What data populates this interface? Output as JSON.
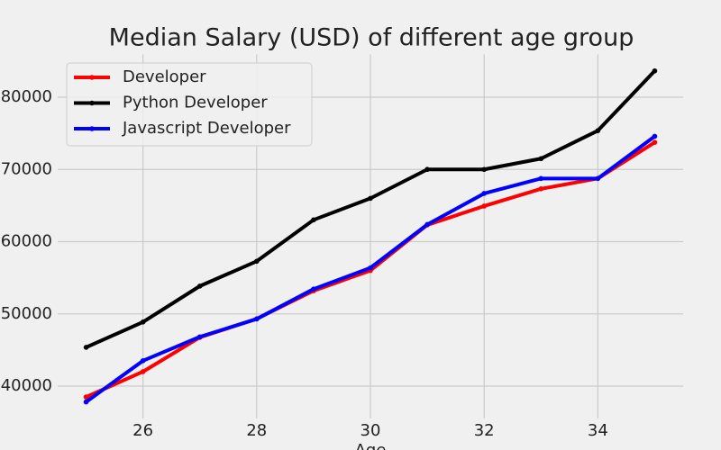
{
  "chart_data": {
    "type": "line",
    "title": "Median Salary (USD) of different age group",
    "x_label": "Age",
    "x": [
      25,
      26,
      27,
      28,
      29,
      30,
      31,
      32,
      33,
      34,
      35
    ],
    "series": [
      {
        "name": "Developer",
        "color": "#ff0000",
        "values": [
          38496,
          42000,
          46752,
          49320,
          53200,
          56000,
          62316,
          64928,
          67317,
          68748,
          73752
        ]
      },
      {
        "name": "Python Developer",
        "color": "#000000",
        "values": [
          45372,
          48876,
          53850,
          57287,
          63016,
          65998,
          70003,
          70000,
          71496,
          75370,
          83640
        ]
      },
      {
        "name": "Javascript Developer",
        "color": "#0000ff",
        "values": [
          37810,
          43515,
          46823,
          49293,
          53437,
          56373,
          62375,
          66674,
          68745,
          68746,
          74583
        ]
      }
    ],
    "xlim": [
      24.5,
      35.5
    ],
    "xticks": [
      26,
      28,
      30,
      32,
      34
    ],
    "ylim": [
      35518.5,
      85931.5
    ],
    "yticks": [
      40000,
      50000,
      60000,
      70000,
      80000
    ],
    "grid": true,
    "legend": "upper left"
  }
}
